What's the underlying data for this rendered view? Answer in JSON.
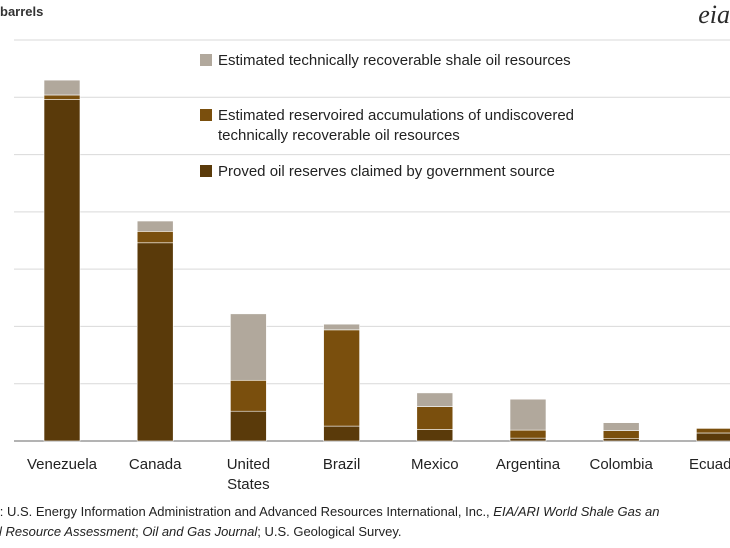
{
  "header": {
    "unit_label": "barrels",
    "logo_text": "eia"
  },
  "source": {
    "line1_prefix": "es: U.S. Energy Information Administration and Advanced Resources International, Inc., ",
    "line1_italic": "EIA/ARI World Shale Gas an",
    "line2_italic1": "Oil Resource Assessment",
    "line2_mid": "; ",
    "line2_italic2": "Oil and Gas Journal",
    "line2_suffix": "; U.S. Geological Survey."
  },
  "chart_data": {
    "type": "bar",
    "stacked": true,
    "categories": [
      "Venezuela",
      "Canada",
      "United States",
      "Brazil",
      "Mexico",
      "Argentina",
      "Colombia",
      "Ecuador"
    ],
    "category_lines": [
      [
        "Venezuela"
      ],
      [
        "Canada"
      ],
      [
        "United",
        "States"
      ],
      [
        "Brazil"
      ],
      [
        "Mexico"
      ],
      [
        "Argentina"
      ],
      [
        "Colombia"
      ],
      [
        "Ecuado"
      ]
    ],
    "series": [
      {
        "name": "Proved oil reserves claimed by government source",
        "color": "#5a3a0a",
        "values": [
          298,
          173,
          26,
          13,
          10,
          2.5,
          2,
          7
        ]
      },
      {
        "name": "Estimated reservoired accumulations of undiscovered technically recoverable oil resources",
        "color": "#7a4f0d",
        "values": [
          4,
          10,
          27,
          84,
          20,
          7,
          7,
          4
        ]
      },
      {
        "name": "Estimated technically recoverable shale oil resources",
        "color": "#b1a89c",
        "values": [
          13,
          9,
          58,
          5,
          12,
          27,
          7,
          0
        ]
      }
    ],
    "ylim": [
      0,
      350
    ],
    "yticks": [
      0,
      50,
      100,
      150,
      200,
      250,
      300,
      350
    ],
    "grid": true,
    "legend_position": "top-right"
  }
}
